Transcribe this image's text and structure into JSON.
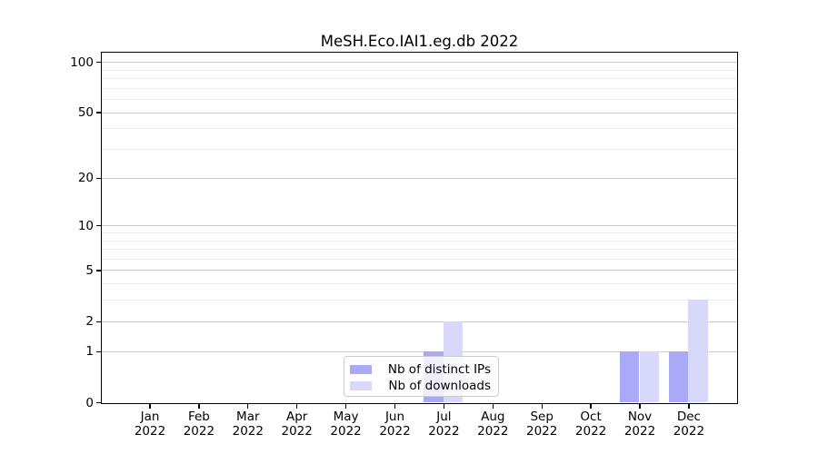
{
  "title": "MeSH.Eco.IAI1.eg.db 2022",
  "legend": {
    "items": [
      {
        "label": "Nb of distinct IPs",
        "color": "#a9a9f8"
      },
      {
        "label": "Nb of downloads",
        "color": "#d8d8fa"
      }
    ]
  },
  "y_axis": {
    "major_ticks": [
      100,
      50,
      20,
      10,
      5,
      2,
      1,
      0
    ],
    "minor_ticks": [
      3,
      4,
      6,
      7,
      8,
      9,
      30,
      40,
      60,
      70,
      80,
      90
    ]
  },
  "colors": {
    "bar_distinct_ips": "#a9a9f8",
    "bar_downloads": "#d8d8fa",
    "grid_major": "#c9c9c9",
    "grid_minor": "#ececec",
    "spine": "#000000",
    "legend_border": "#cccccc"
  },
  "chart_data": {
    "type": "bar",
    "scale": "log1p",
    "title": "MeSH.Eco.IAI1.eg.db 2022",
    "categories": [
      "Jan 2022",
      "Feb 2022",
      "Mar 2022",
      "Apr 2022",
      "May 2022",
      "Jun 2022",
      "Jul 2022",
      "Aug 2022",
      "Sep 2022",
      "Oct 2022",
      "Nov 2022",
      "Dec 2022"
    ],
    "series": [
      {
        "name": "Nb of distinct IPs",
        "color": "#a9a9f8",
        "values": [
          0,
          0,
          0,
          0,
          0,
          0,
          1,
          0,
          0,
          0,
          1,
          1
        ]
      },
      {
        "name": "Nb of downloads",
        "color": "#d8d8fa",
        "values": [
          0,
          0,
          0,
          0,
          0,
          0,
          2,
          0,
          0,
          0,
          1,
          3
        ]
      }
    ],
    "xlabel": "",
    "ylabel": "",
    "ylim": [
      0,
      110
    ],
    "yticks": [
      100,
      50,
      20,
      10,
      5,
      2,
      1,
      0
    ],
    "grid": true,
    "legend_position": "lower center"
  }
}
